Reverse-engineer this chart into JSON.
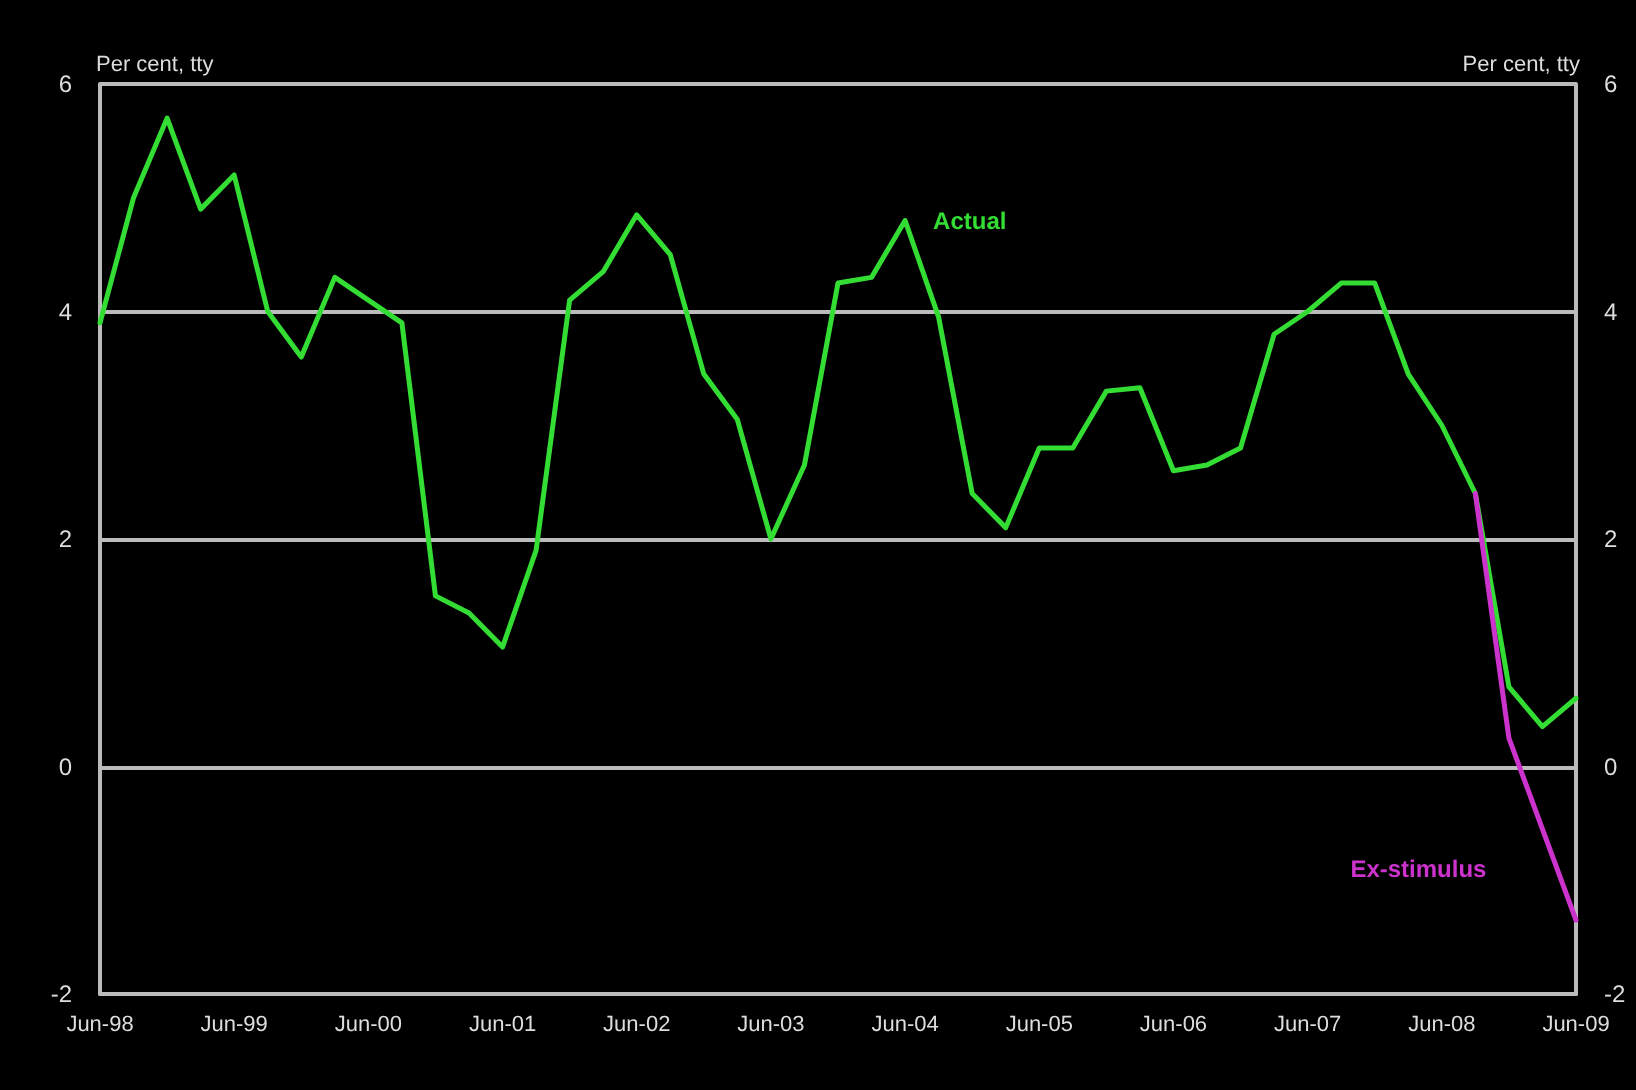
{
  "chart_data": {
    "type": "line",
    "ylabel": "Per cent, tty",
    "y2label": "Per cent, tty",
    "categories": [
      "Jun-98",
      null,
      null,
      null,
      "Jun-99",
      null,
      null,
      null,
      "Jun-00",
      null,
      null,
      null,
      "Jun-01",
      null,
      null,
      null,
      "Jun-02",
      null,
      null,
      null,
      "Jun-03",
      null,
      null,
      null,
      "Jun-04",
      null,
      null,
      null,
      "Jun-05",
      null,
      null,
      null,
      "Jun-06",
      null,
      null,
      null,
      "Jun-07",
      null,
      null,
      null,
      "Jun-08",
      null,
      null,
      null,
      "Jun-09"
    ],
    "series": [
      {
        "name": "Actual",
        "color": "#33dd33",
        "values": [
          3.9,
          5.0,
          5.7,
          4.9,
          5.2,
          4.0,
          3.6,
          4.3,
          4.1,
          3.9,
          1.5,
          1.35,
          1.05,
          1.9,
          4.1,
          4.35,
          4.85,
          4.5,
          3.45,
          3.05,
          2.0,
          2.65,
          4.25,
          4.3,
          4.8,
          3.95,
          2.4,
          2.1,
          2.8,
          2.8,
          3.3,
          3.33,
          2.6,
          2.65,
          2.8,
          3.8,
          4.0,
          4.25,
          4.25,
          3.45,
          3.0,
          2.4,
          0.7,
          0.35,
          0.6
        ]
      },
      {
        "name": "Ex-stimulus",
        "color": "#cc33cc",
        "values": [
          null,
          null,
          null,
          null,
          null,
          null,
          null,
          null,
          null,
          null,
          null,
          null,
          null,
          null,
          null,
          null,
          null,
          null,
          null,
          null,
          null,
          null,
          null,
          null,
          null,
          null,
          null,
          null,
          null,
          null,
          null,
          null,
          null,
          null,
          null,
          null,
          null,
          null,
          null,
          null,
          null,
          2.4,
          0.25,
          -0.55,
          -1.35
        ]
      }
    ],
    "ylim": [
      -2,
      6
    ],
    "yticks": [
      -2,
      0,
      2,
      4,
      6
    ],
    "y2lim": [
      -2,
      6
    ],
    "y2ticks": [
      -2,
      0,
      2,
      4,
      6
    ],
    "grid": "y",
    "legend": false,
    "marker": "none",
    "line_style": "solid"
  }
}
